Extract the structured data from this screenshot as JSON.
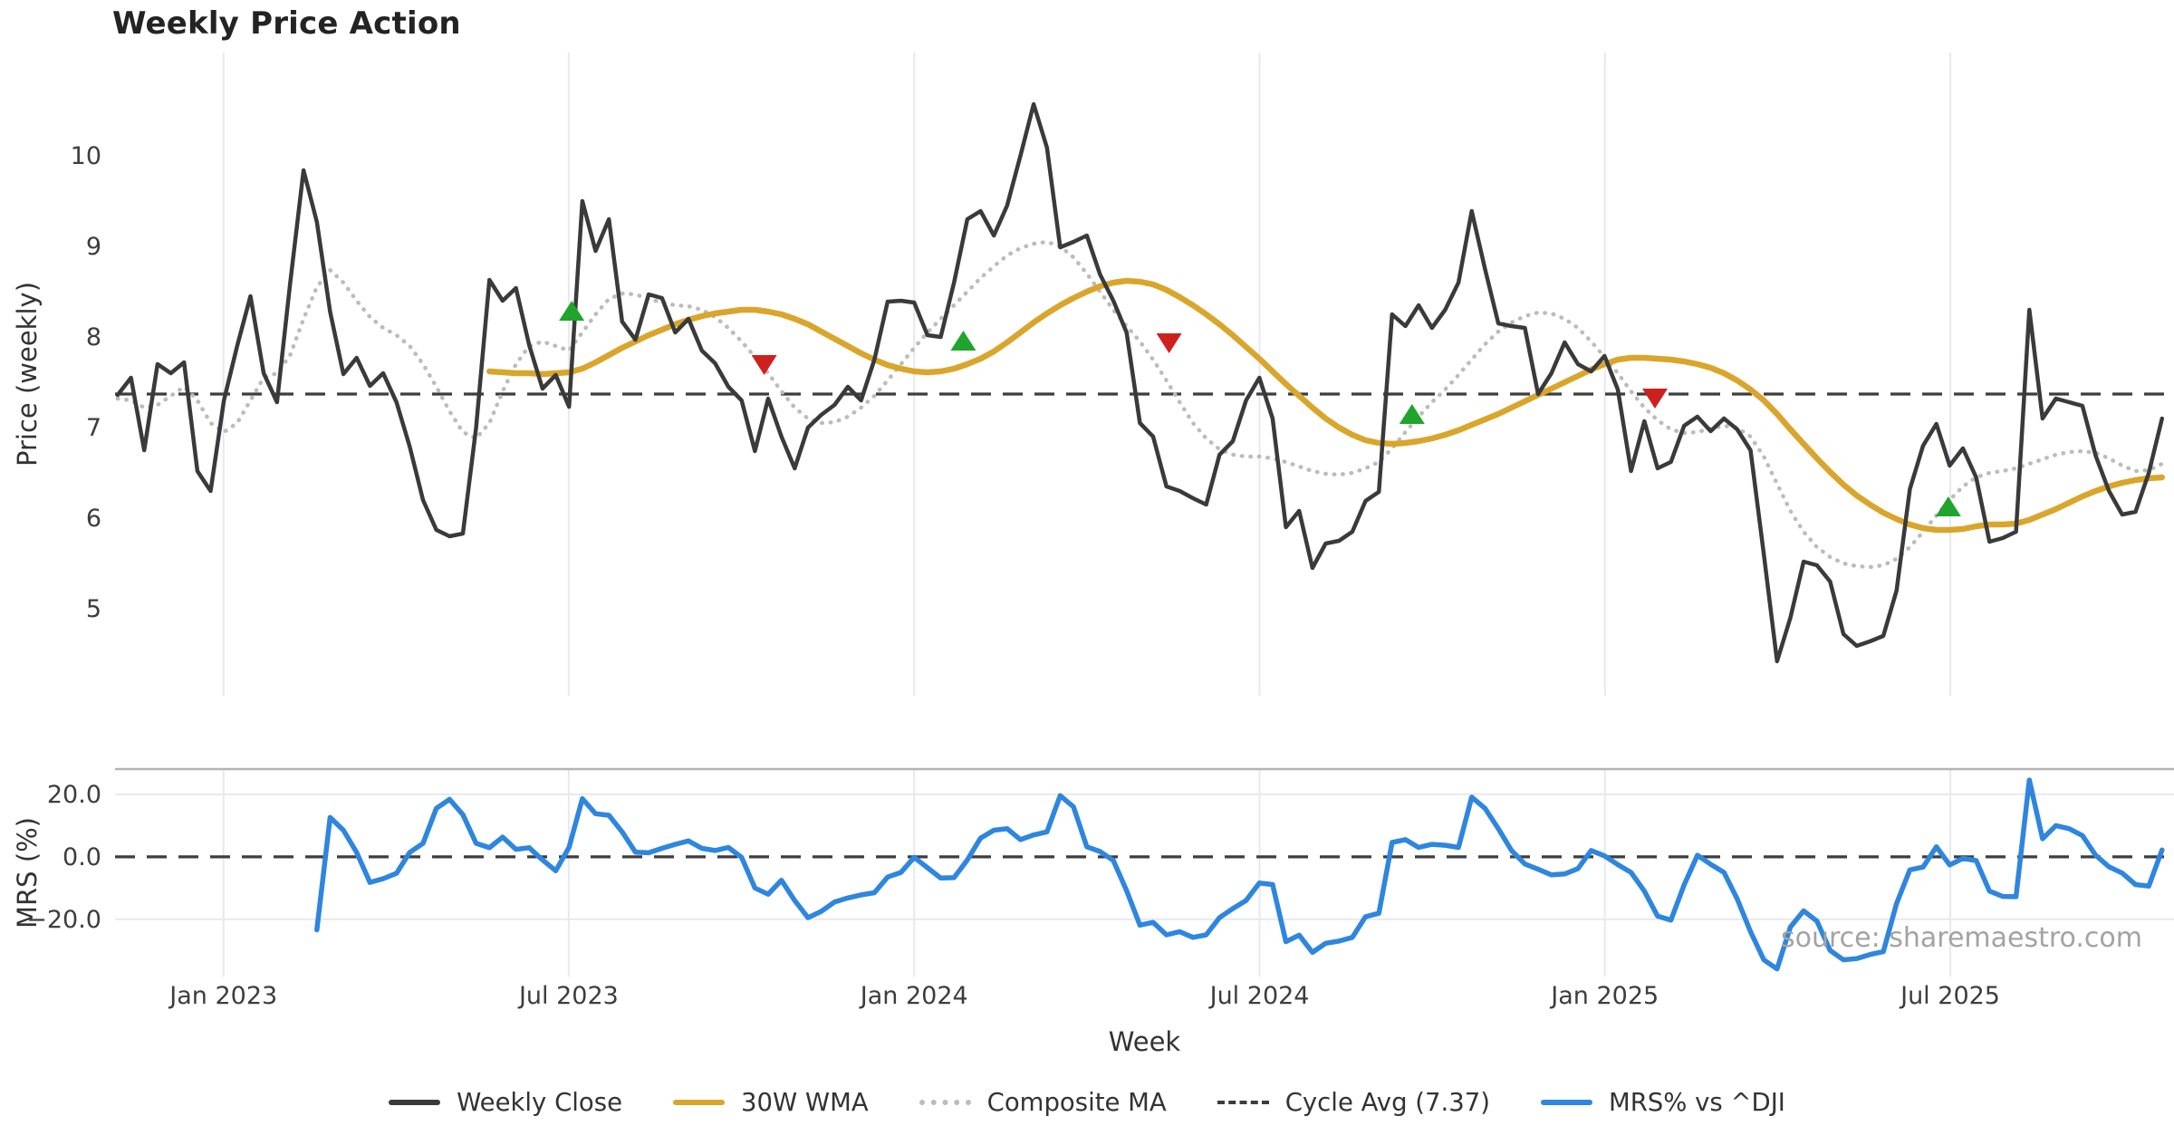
{
  "title": "Weekly Price Action",
  "source_note": "source: sharemaestro.com",
  "colors": {
    "close": "#3a3a3a",
    "wma": "#d9a62b",
    "composite": "#bcbcbc",
    "cycle": "#3d3d3d",
    "mrs": "#2e86de",
    "buy": "#1fa52c",
    "sell": "#cf2020",
    "grid_v": "#e7e9f0",
    "grid_h": "#e8e8ef",
    "panel_border": "#b3b3b3",
    "tick_text": "#3d3d3d",
    "axis_text": "#333333"
  },
  "legend": [
    {
      "label": "Weekly Close",
      "swatch": "solid",
      "color": "#3a3a3a"
    },
    {
      "label": "30W WMA",
      "swatch": "solid",
      "color": "#d9a62b"
    },
    {
      "label": "Composite MA",
      "swatch": "dotted",
      "color": "#bcbcbc"
    },
    {
      "label": "Cycle Avg (7.37)",
      "swatch": "dashed",
      "color": "#3d3d3d"
    },
    {
      "label": "MRS% vs ^DJI",
      "swatch": "solid",
      "color": "#2e86de"
    }
  ],
  "chart_data": {
    "type": "line",
    "title": "Weekly Price Action",
    "xlabel": "Week",
    "x_unit": "weeks (w0 = first plotted week, early Nov 2022)",
    "xticks": {
      "weeks": [
        7.97,
        33.98,
        60.0,
        86.02,
        112.03,
        138.05
      ],
      "labels": [
        "Jan 2023",
        "Jul 2023",
        "Jan 2024",
        "Jul 2024",
        "Jan 2025",
        "Jul 2025"
      ]
    },
    "panels": [
      {
        "name": "price",
        "ylabel": "Price (weekly)",
        "ylim": [
          4.04,
          11.14
        ],
        "yticks": {
          "values": [
            10,
            9,
            8,
            7,
            6,
            5
          ],
          "labels": [
            "10",
            "9",
            "8",
            "7",
            "6",
            "5"
          ]
        },
        "hline": {
          "value": 7.37,
          "style": "dashed",
          "label": "Cycle Avg (7.37)"
        },
        "series": [
          {
            "name": "Composite MA",
            "style": "dotted",
            "width": 4.5,
            "color": "#bcbcbc",
            "start_week": 0,
            "values": [
              7.32,
              7.3,
              7.22,
              7.25,
              7.35,
              7.45,
              7.3,
              7.05,
              6.95,
              7.05,
              7.3,
              7.55,
              7.6,
              7.8,
              8.2,
              8.55,
              8.74,
              8.6,
              8.4,
              8.22,
              8.1,
              8.02,
              7.9,
              7.7,
              7.45,
              7.18,
              6.95,
              6.88,
              7.05,
              7.4,
              7.7,
              7.9,
              7.95,
              7.9,
              7.85,
              8.05,
              8.25,
              8.42,
              8.48,
              8.47,
              8.42,
              8.38,
              8.35,
              8.34,
              8.3,
              8.22,
              8.1,
              7.95,
              7.78,
              7.6,
              7.4,
              7.22,
              7.1,
              7.05,
              7.06,
              7.12,
              7.22,
              7.35,
              7.52,
              7.7,
              7.88,
              8.05,
              8.2,
              8.35,
              8.5,
              8.65,
              8.78,
              8.9,
              8.98,
              9.03,
              9.05,
              9.0,
              8.88,
              8.7,
              8.5,
              8.3,
              8.12,
              7.95,
              7.75,
              7.52,
              7.28,
              7.05,
              6.88,
              6.76,
              6.7,
              6.68,
              6.68,
              6.66,
              6.62,
              6.57,
              6.52,
              6.49,
              6.48,
              6.5,
              6.55,
              6.62,
              6.77,
              6.95,
              7.12,
              7.28,
              7.42,
              7.58,
              7.75,
              7.92,
              8.06,
              8.16,
              8.23,
              8.27,
              8.26,
              8.2,
              8.1,
              7.95,
              7.78,
              7.6,
              7.4,
              7.22,
              7.08,
              6.98,
              6.94,
              6.95,
              6.99,
              7.02,
              7.0,
              6.9,
              6.68,
              6.38,
              6.08,
              5.85,
              5.68,
              5.57,
              5.5,
              5.47,
              5.46,
              5.48,
              5.55,
              5.68,
              5.85,
              6.03,
              6.2,
              6.35,
              6.45,
              6.5,
              6.52,
              6.55,
              6.6,
              6.65,
              6.7,
              6.73,
              6.74,
              6.72,
              6.66,
              6.58,
              6.52,
              6.53,
              6.6
            ]
          },
          {
            "name": "30W WMA",
            "style": "solid",
            "width": 6.5,
            "color": "#d9a62b",
            "start_week": 28,
            "values": [
              7.62,
              7.61,
              7.6,
              7.6,
              7.59,
              7.6,
              7.61,
              7.65,
              7.72,
              7.8,
              7.88,
              7.95,
              8.02,
              8.08,
              8.14,
              8.19,
              8.23,
              8.26,
              8.28,
              8.3,
              8.3,
              8.28,
              8.25,
              8.2,
              8.14,
              8.06,
              7.98,
              7.9,
              7.82,
              7.75,
              7.69,
              7.65,
              7.62,
              7.61,
              7.62,
              7.65,
              7.7,
              7.76,
              7.84,
              7.94,
              8.05,
              8.16,
              8.26,
              8.35,
              8.43,
              8.5,
              8.56,
              8.6,
              8.62,
              8.61,
              8.58,
              8.52,
              8.44,
              8.35,
              8.25,
              8.14,
              8.02,
              7.89,
              7.76,
              7.62,
              7.48,
              7.35,
              7.22,
              7.1,
              7.0,
              6.92,
              6.86,
              6.83,
              6.82,
              6.83,
              6.85,
              6.88,
              6.92,
              6.97,
              7.03,
              7.09,
              7.15,
              7.22,
              7.29,
              7.36,
              7.43,
              7.5,
              7.57,
              7.64,
              7.7,
              7.75,
              7.77,
              7.77,
              7.76,
              7.75,
              7.73,
              7.7,
              7.66,
              7.6,
              7.52,
              7.42,
              7.3,
              7.15,
              6.98,
              6.82,
              6.66,
              6.51,
              6.37,
              6.25,
              6.15,
              6.06,
              5.99,
              5.93,
              5.89,
              5.87,
              5.87,
              5.88,
              5.91,
              5.93,
              5.93,
              5.94,
              5.98,
              6.04,
              6.1,
              6.17,
              6.24,
              6.3,
              6.35,
              6.39,
              6.42,
              6.44,
              6.45
            ]
          },
          {
            "name": "Weekly Close",
            "style": "solid",
            "width": 4.5,
            "color": "#3a3a3a",
            "start_week": 0,
            "values": [
              7.36,
              7.55,
              6.75,
              7.7,
              7.6,
              7.72,
              6.52,
              6.3,
              7.3,
              7.9,
              8.45,
              7.6,
              7.28,
              8.6,
              9.84,
              9.27,
              8.28,
              7.59,
              7.77,
              7.46,
              7.6,
              7.28,
              6.79,
              6.2,
              5.87,
              5.8,
              5.83,
              7.0,
              8.63,
              8.4,
              8.54,
              7.91,
              7.43,
              7.58,
              7.23,
              9.5,
              8.95,
              9.3,
              8.17,
              7.97,
              8.47,
              8.43,
              8.05,
              8.2,
              7.85,
              7.71,
              7.45,
              7.3,
              6.74,
              7.32,
              6.9,
              6.55,
              7.0,
              7.14,
              7.25,
              7.45,
              7.3,
              7.75,
              8.39,
              8.4,
              8.38,
              8.02,
              8.0,
              8.6,
              9.3,
              9.39,
              9.12,
              9.45,
              10.0,
              10.57,
              10.09,
              8.99,
              9.05,
              9.12,
              8.69,
              8.4,
              8.05,
              7.05,
              6.9,
              6.35,
              6.3,
              6.22,
              6.15,
              6.7,
              6.85,
              7.3,
              7.55,
              7.1,
              5.9,
              6.08,
              5.45,
              5.72,
              5.75,
              5.85,
              6.19,
              6.29,
              8.25,
              8.12,
              8.35,
              8.1,
              8.3,
              8.6,
              9.39,
              8.75,
              8.15,
              8.12,
              8.1,
              7.37,
              7.6,
              7.94,
              7.7,
              7.62,
              7.79,
              7.42,
              6.52,
              7.07,
              6.55,
              6.62,
              7.02,
              7.12,
              6.96,
              7.1,
              6.98,
              6.75,
              5.6,
              4.42,
              4.9,
              5.52,
              5.48,
              5.3,
              4.72,
              4.59,
              4.64,
              4.7,
              5.2,
              6.32,
              6.8,
              7.04,
              6.58,
              6.77,
              6.45,
              5.74,
              5.78,
              5.85,
              8.3,
              7.1,
              7.32,
              7.28,
              7.24,
              6.69,
              6.3,
              6.04,
              6.07,
              6.5,
              7.1
            ]
          }
        ],
        "markers": {
          "buy": [
            [
              34.2,
              8.28
            ],
            [
              63.7,
              7.95
            ],
            [
              97.5,
              7.14
            ],
            [
              137.9,
              6.12
            ]
          ],
          "sell": [
            [
              48.7,
              7.7
            ],
            [
              79.2,
              7.94
            ],
            [
              115.8,
              7.33
            ]
          ]
        }
      },
      {
        "name": "mrs",
        "ylabel": "MRS (%)",
        "ylim": [
          -38.35,
          28.1
        ],
        "yticks": {
          "values": [
            20,
            0,
            -20
          ],
          "labels": [
            "20.0",
            "0.0",
            "−20.0"
          ]
        },
        "hline": {
          "value": 0,
          "style": "dashed",
          "label": "zero line"
        },
        "gridlines_h": [
          20,
          -20
        ],
        "series": [
          {
            "name": "MRS% vs ^DJI",
            "style": "solid",
            "width": 5.5,
            "color": "#2e86de",
            "start_week": 15,
            "values": [
              -23.4,
              12.6,
              8.5,
              1.4,
              -8.2,
              -7.0,
              -5.3,
              1.4,
              4.3,
              15.5,
              18.4,
              13.5,
              4.3,
              2.9,
              6.3,
              2.4,
              2.9,
              -1.0,
              -4.5,
              3.0,
              18.6,
              13.8,
              13.3,
              8.0,
              1.5,
              1.3,
              2.7,
              4.0,
              5.1,
              2.7,
              2.0,
              3.0,
              -0.2,
              -10.0,
              -12.0,
              -7.5,
              -14.0,
              -19.5,
              -17.5,
              -14.5,
              -13.2,
              -12.2,
              -11.5,
              -6.5,
              -5.0,
              -0.2,
              -3.5,
              -6.8,
              -6.7,
              -1.0,
              6.0,
              8.5,
              9.0,
              5.5,
              7.0,
              8.0,
              19.6,
              16.0,
              3.2,
              1.7,
              -1.2,
              -10.8,
              -21.9,
              -21.0,
              -25.0,
              -24.0,
              -25.8,
              -25.0,
              -19.5,
              -16.6,
              -14.0,
              -8.4,
              -8.9,
              -27.2,
              -25.1,
              -30.6,
              -27.7,
              -27.0,
              -25.8,
              -19.2,
              -18.1,
              4.6,
              5.5,
              3.0,
              4.0,
              3.7,
              3.0,
              19.1,
              15.5,
              9.0,
              2.0,
              -2.3,
              -4.0,
              -5.8,
              -5.5,
              -3.8,
              2.0,
              0.3,
              -2.5,
              -5.0,
              -11.0,
              -19.0,
              -20.3,
              -9.0,
              0.5,
              -2.4,
              -5.0,
              -13.5,
              -24.0,
              -33.0,
              -35.9,
              -22.5,
              -17.3,
              -20.6,
              -30.0,
              -33.0,
              -32.6,
              -31.3,
              -30.4,
              -15.0,
              -4.2,
              -3.3,
              3.2,
              -2.6,
              -0.5,
              -1.2,
              -11.0,
              -12.7,
              -12.8,
              24.6,
              5.8,
              10.0,
              9.0,
              6.8,
              0.5,
              -3.2,
              -5.2,
              -8.9,
              -9.4,
              2.2
            ]
          }
        ]
      }
    ]
  }
}
